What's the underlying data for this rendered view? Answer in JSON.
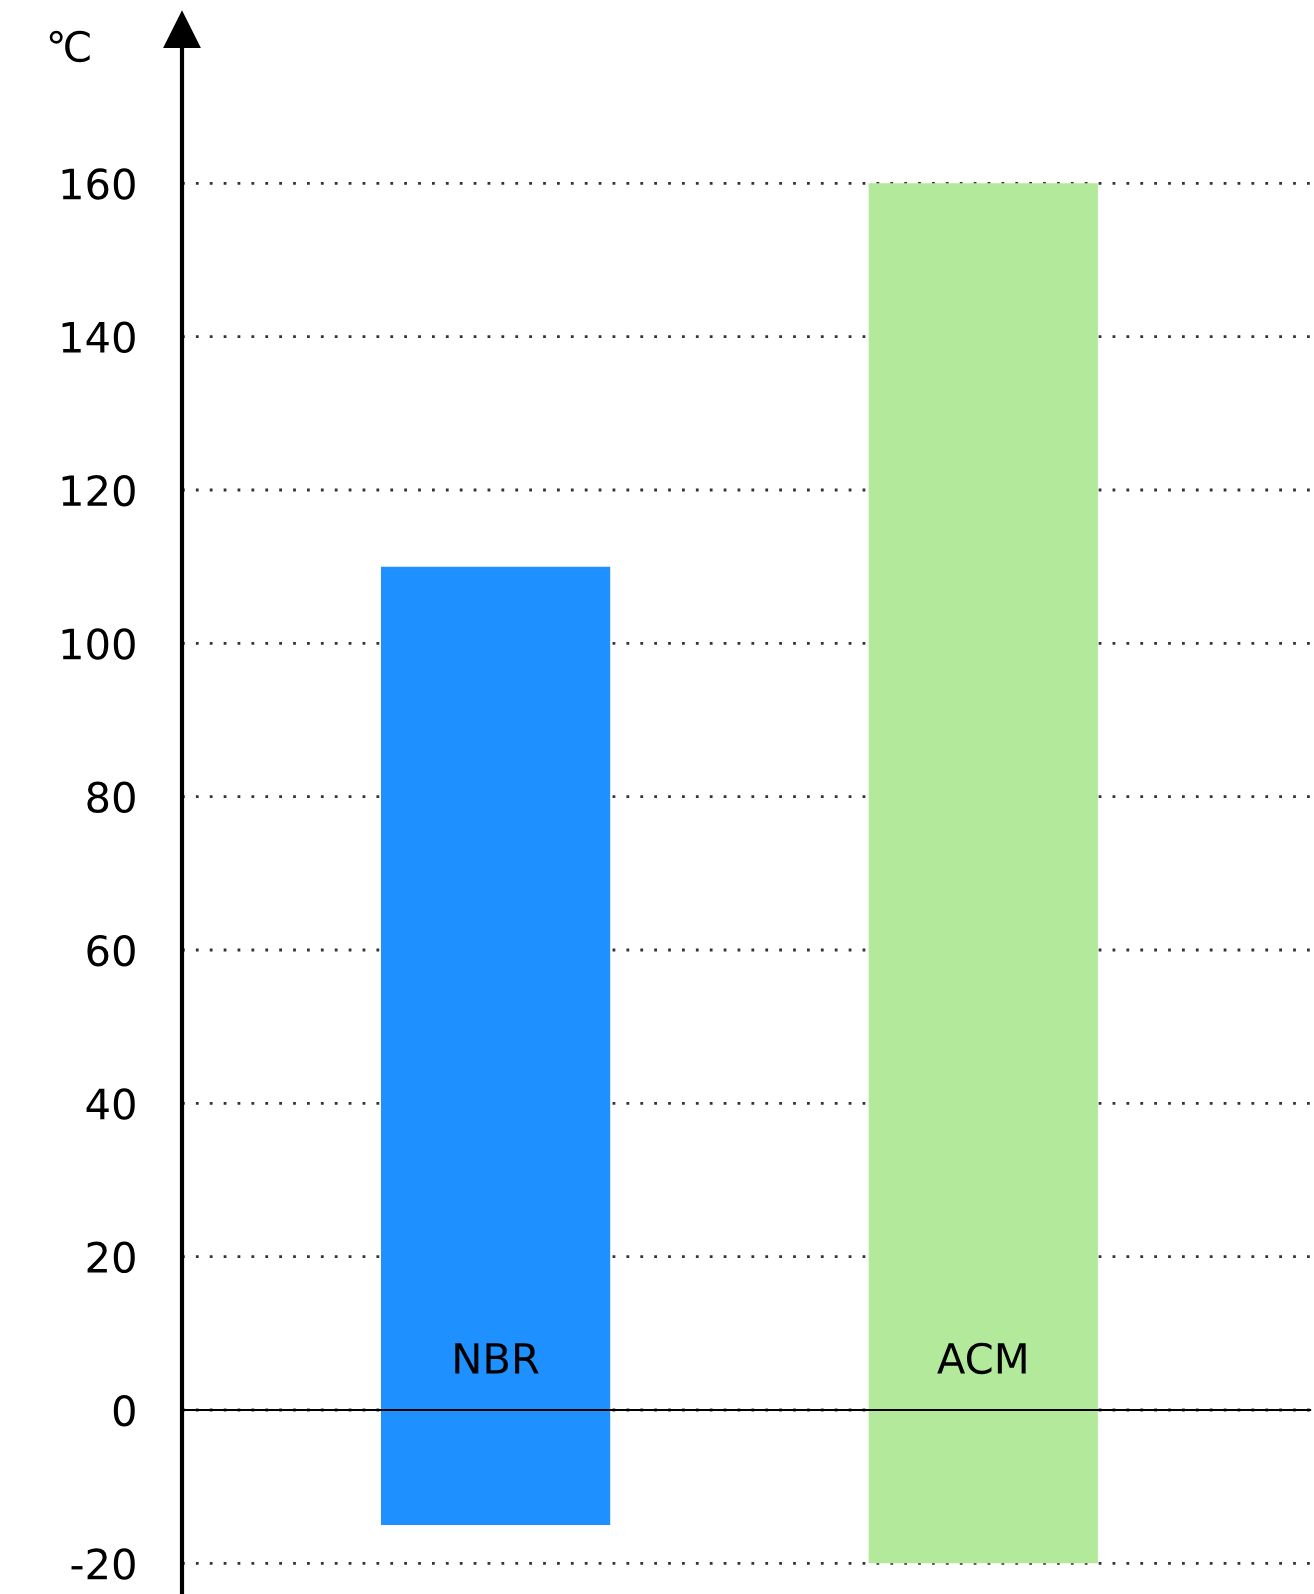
{
  "chart_data": {
    "type": "bar",
    "ylabel": "℃",
    "categories": [
      "NBR",
      "ACM"
    ],
    "base": [
      -15,
      -20
    ],
    "values": [
      125,
      180
    ],
    "colors": [
      "#1e90ff",
      "#b3e99b"
    ],
    "ylim": [
      -24,
      180
    ],
    "yticks": [
      -20,
      0,
      20,
      40,
      60,
      80,
      100,
      120,
      140,
      160
    ],
    "grid": "y",
    "legend": false
  }
}
